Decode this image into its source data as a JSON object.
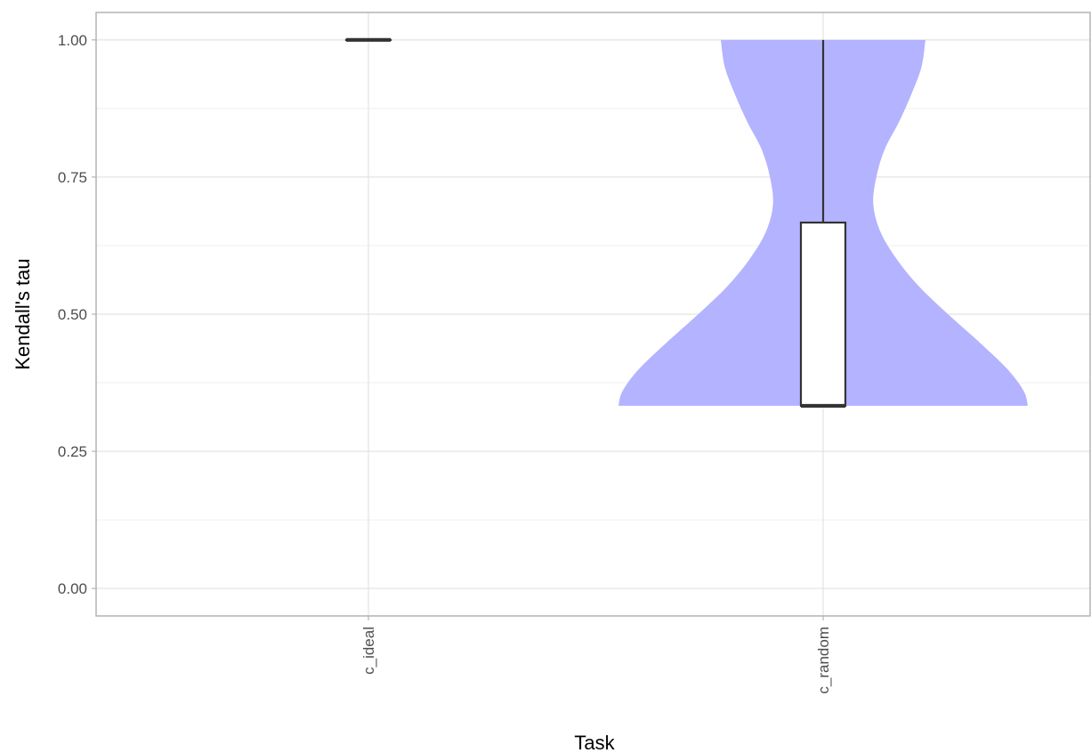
{
  "chart_data": {
    "type": "violin",
    "xlabel": "Task",
    "ylabel": "Kendall's tau",
    "ylim": [
      -0.05,
      1.05
    ],
    "y_ticks": [
      0.0,
      0.25,
      0.5,
      0.75,
      1.0
    ],
    "y_tick_labels": [
      "0.00",
      "0.25",
      "0.50",
      "0.75",
      "1.00"
    ],
    "categories": [
      "c_ideal",
      "c_random"
    ],
    "grid": true,
    "colors": {
      "violin_fill": "#b3b3ff",
      "box_stroke": "#333333",
      "grid_major": "#dedede",
      "grid_minor": "#efefef",
      "panel_border": "#b3b3b3"
    },
    "groups": [
      {
        "category": "c_ideal",
        "min": 1.0,
        "q1": 1.0,
        "median": 1.0,
        "q3": 1.0,
        "max": 1.0,
        "violin": []
      },
      {
        "category": "c_random",
        "min": 0.333,
        "q1": 0.333,
        "median": 0.333,
        "q3": 0.667,
        "max": 1.0,
        "violin": [
          {
            "y": 0.333,
            "w": 1.0
          },
          {
            "y": 0.36,
            "w": 0.98
          },
          {
            "y": 0.4,
            "w": 0.9
          },
          {
            "y": 0.45,
            "w": 0.76
          },
          {
            "y": 0.5,
            "w": 0.61
          },
          {
            "y": 0.55,
            "w": 0.47
          },
          {
            "y": 0.6,
            "w": 0.36
          },
          {
            "y": 0.65,
            "w": 0.28
          },
          {
            "y": 0.7,
            "w": 0.245
          },
          {
            "y": 0.75,
            "w": 0.26
          },
          {
            "y": 0.8,
            "w": 0.3
          },
          {
            "y": 0.85,
            "w": 0.37
          },
          {
            "y": 0.9,
            "w": 0.43
          },
          {
            "y": 0.95,
            "w": 0.48
          },
          {
            "y": 1.0,
            "w": 0.5
          }
        ]
      }
    ]
  }
}
